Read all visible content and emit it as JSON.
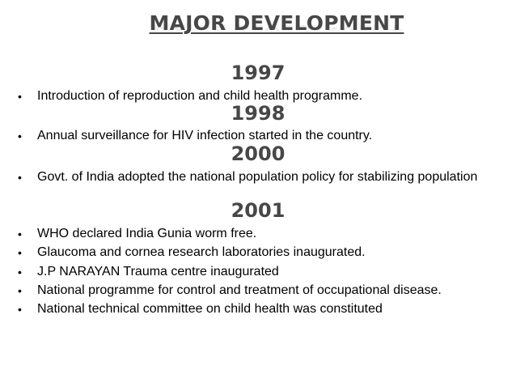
{
  "title": "MAJOR DEVELOPMENT",
  "bullet_glyph": "•",
  "sections": [
    {
      "year": "1997",
      "items": [
        "Introduction of reproduction and child health programme."
      ]
    },
    {
      "year": "1998",
      "items": [
        "Annual surveillance for HIV infection started in the country."
      ]
    },
    {
      "year": "2000",
      "items": [
        "Govt. of India adopted the national population policy for stabilizing population"
      ]
    },
    {
      "year": "2001",
      "items": [
        "WHO declared India Gunia worm free.",
        "Glaucoma and cornea research laboratories inaugurated.",
        "J.P NARAYAN Trauma centre inaugurated",
        "National programme for control and treatment of occupational disease.",
        "National technical committee on child health was constituted"
      ]
    }
  ]
}
